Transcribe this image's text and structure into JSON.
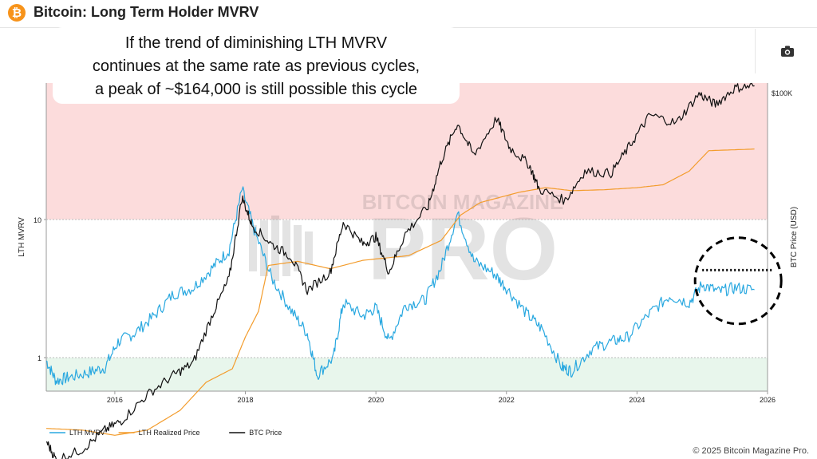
{
  "header": {
    "title": "Bitcoin: Long Term Holder MVRV",
    "logo_icon": "bitcoin-icon",
    "camera_icon": "camera-icon"
  },
  "footer": {
    "copyright": "© 2025 Bitcoin Magazine Pro."
  },
  "watermark": {
    "line1": "BITCOIN MAGAZINE",
    "line2": "PRO"
  },
  "annotation": {
    "lines": [
      "If the trend of diminishing LTH MVRV",
      "continues at the same rate as previous cycles,",
      "a peak of ~$164,000 is still possible this cycle"
    ]
  },
  "chart_data": {
    "type": "line",
    "title": "Bitcoin: Long Term Holder MVRV",
    "xlabel": "",
    "ylabel_left": "LTH MVRV",
    "ylabel_right": "BTC Price (USD)",
    "x_ticks": [
      "2016",
      "2018",
      "2020",
      "2022",
      "2024",
      "2026"
    ],
    "y_left_ticks": [
      "1",
      "10"
    ],
    "y_left_scale": "log",
    "y_right_ticks": [
      "$100K"
    ],
    "y_right_scale": "log",
    "zones": [
      {
        "name": "overvalued",
        "from": 10,
        "color": "#fcdcdc"
      },
      {
        "name": "undervalued",
        "to": 1,
        "color": "#e8f6ec"
      }
    ],
    "legend_position": "bottom-left",
    "series": [
      {
        "name": "LTH MVRV",
        "color": "#29a8e0",
        "axis": "left",
        "points": [
          [
            2014.95,
            0.95
          ],
          [
            2015.1,
            0.68
          ],
          [
            2015.3,
            0.72
          ],
          [
            2015.6,
            0.78
          ],
          [
            2015.85,
            0.85
          ],
          [
            2016.05,
            1.3
          ],
          [
            2016.3,
            1.5
          ],
          [
            2016.6,
            2.0
          ],
          [
            2016.9,
            2.9
          ],
          [
            2017.2,
            3.2
          ],
          [
            2017.5,
            4.5
          ],
          [
            2017.75,
            6.0
          ],
          [
            2017.95,
            16.5
          ],
          [
            2018.15,
            8.0
          ],
          [
            2018.4,
            3.8
          ],
          [
            2018.7,
            2.2
          ],
          [
            2018.95,
            1.5
          ],
          [
            2019.1,
            0.75
          ],
          [
            2019.35,
            1.0
          ],
          [
            2019.5,
            2.5
          ],
          [
            2019.8,
            2.0
          ],
          [
            2020.0,
            2.3
          ],
          [
            2020.2,
            1.3
          ],
          [
            2020.45,
            2.4
          ],
          [
            2020.75,
            2.6
          ],
          [
            2021.0,
            4.5
          ],
          [
            2021.25,
            11.0
          ],
          [
            2021.5,
            5.0
          ],
          [
            2021.8,
            4.1
          ],
          [
            2022.0,
            3.2
          ],
          [
            2022.3,
            2.1
          ],
          [
            2022.55,
            1.6
          ],
          [
            2022.85,
            0.85
          ],
          [
            2023.0,
            0.8
          ],
          [
            2023.3,
            1.15
          ],
          [
            2023.6,
            1.3
          ],
          [
            2023.85,
            1.4
          ],
          [
            2024.2,
            2.1
          ],
          [
            2024.5,
            2.8
          ],
          [
            2024.8,
            2.5
          ],
          [
            2025.0,
            3.4
          ],
          [
            2025.25,
            3.0
          ],
          [
            2025.5,
            3.2
          ],
          [
            2025.8,
            3.1
          ]
        ]
      },
      {
        "name": "LTH Realized Price",
        "color": "#f39c2c",
        "axis": "right",
        "points": [
          [
            2014.95,
            370
          ],
          [
            2015.5,
            360
          ],
          [
            2016.0,
            330
          ],
          [
            2016.5,
            360
          ],
          [
            2017.0,
            500
          ],
          [
            2017.4,
            800
          ],
          [
            2017.8,
            1000
          ],
          [
            2018.0,
            1700
          ],
          [
            2018.2,
            2600
          ],
          [
            2018.35,
            5600
          ],
          [
            2018.8,
            6000
          ],
          [
            2019.3,
            5300
          ],
          [
            2019.8,
            6100
          ],
          [
            2020.5,
            6600
          ],
          [
            2021.0,
            8500
          ],
          [
            2021.3,
            13000
          ],
          [
            2021.6,
            16000
          ],
          [
            2022.2,
            19000
          ],
          [
            2022.6,
            20500
          ],
          [
            2023.0,
            19500
          ],
          [
            2023.5,
            19800
          ],
          [
            2024.0,
            20500
          ],
          [
            2024.4,
            21500
          ],
          [
            2024.8,
            27000
          ],
          [
            2025.1,
            38000
          ],
          [
            2025.8,
            39000
          ]
        ]
      },
      {
        "name": "BTC Price",
        "color": "#111111",
        "axis": "right",
        "points": [
          [
            2014.95,
            300
          ],
          [
            2015.1,
            220
          ],
          [
            2015.5,
            260
          ],
          [
            2015.85,
            360
          ],
          [
            2016.1,
            420
          ],
          [
            2016.5,
            650
          ],
          [
            2016.9,
            900
          ],
          [
            2017.2,
            1100
          ],
          [
            2017.5,
            2500
          ],
          [
            2017.75,
            4500
          ],
          [
            2017.95,
            17500
          ],
          [
            2018.1,
            11000
          ],
          [
            2018.4,
            8000
          ],
          [
            2018.7,
            6500
          ],
          [
            2018.95,
            3700
          ],
          [
            2019.3,
            5000
          ],
          [
            2019.5,
            11500
          ],
          [
            2019.8,
            8000
          ],
          [
            2020.0,
            9000
          ],
          [
            2020.2,
            5000
          ],
          [
            2020.45,
            9500
          ],
          [
            2020.8,
            15000
          ],
          [
            2021.0,
            32000
          ],
          [
            2021.25,
            60000
          ],
          [
            2021.5,
            35000
          ],
          [
            2021.85,
            65000
          ],
          [
            2022.05,
            40000
          ],
          [
            2022.35,
            30000
          ],
          [
            2022.5,
            20000
          ],
          [
            2022.9,
            16500
          ],
          [
            2023.2,
            27000
          ],
          [
            2023.6,
            26000
          ],
          [
            2023.9,
            42000
          ],
          [
            2024.2,
            69000
          ],
          [
            2024.6,
            60000
          ],
          [
            2024.95,
            98000
          ],
          [
            2025.2,
            82000
          ],
          [
            2025.5,
            108000
          ],
          [
            2025.8,
            112000
          ]
        ]
      }
    ]
  },
  "legend": {
    "items": [
      {
        "label": "LTH MVRV",
        "color": "#29a8e0"
      },
      {
        "label": "LTH Realized Price",
        "color": "#f39c2c"
      },
      {
        "label": "BTC Price",
        "color": "#111111"
      }
    ]
  }
}
